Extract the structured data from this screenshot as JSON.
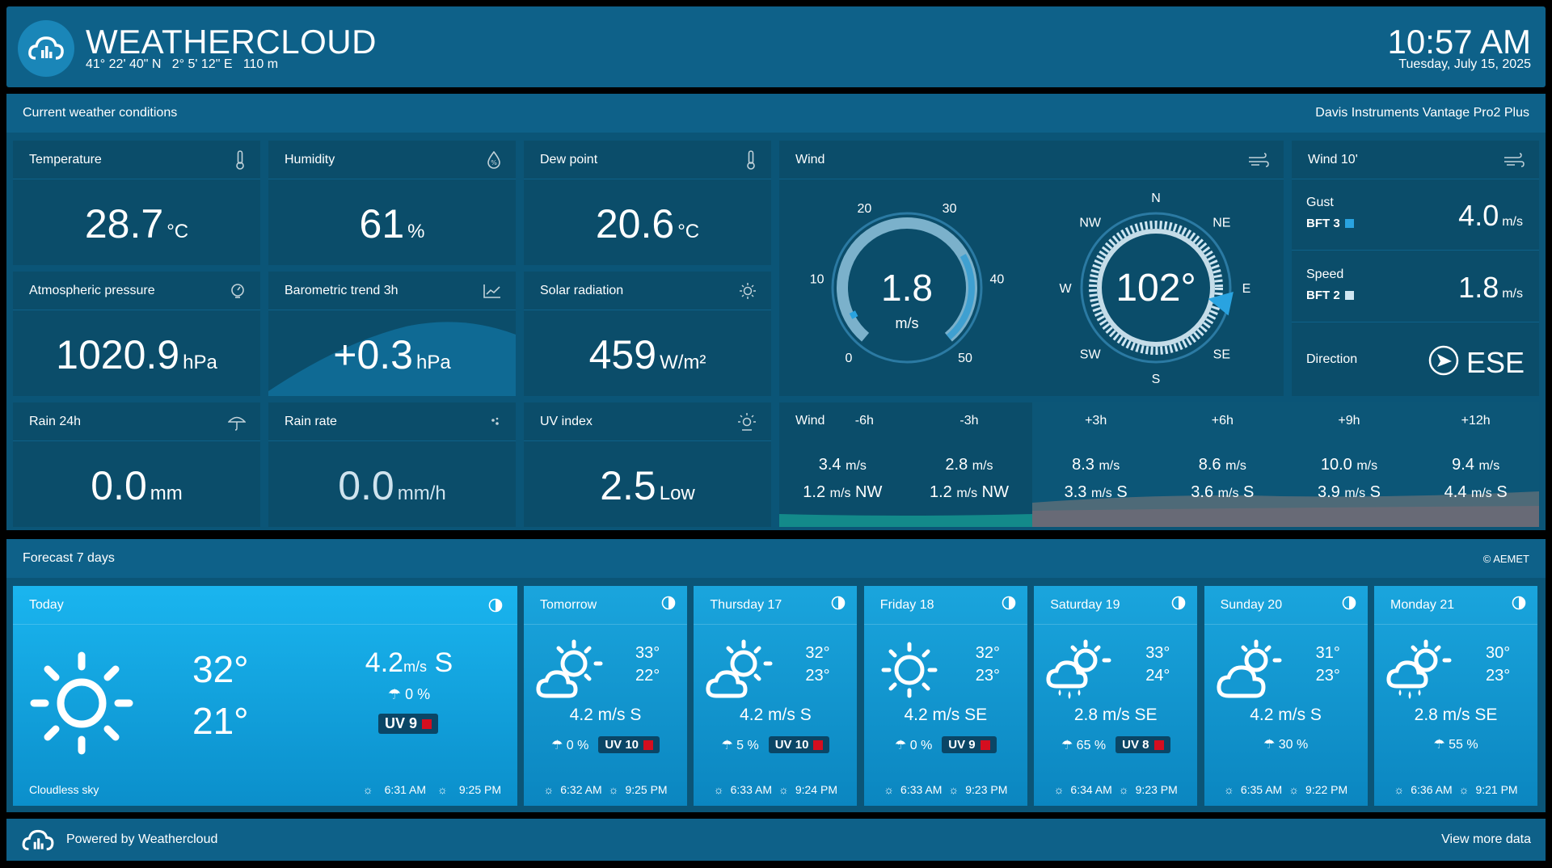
{
  "header": {
    "brand": "WEATHERCLOUD",
    "coords": "41° 22' 40\" N   2° 5' 12\" E   110 m",
    "time": "10:57 AM",
    "date": "Tuesday, July 15, 2025"
  },
  "current": {
    "title": "Current weather conditions",
    "station": "Davis Instruments Vantage Pro2 Plus",
    "temperature": {
      "label": "Temperature",
      "value": "28.7",
      "unit": "°C"
    },
    "humidity": {
      "label": "Humidity",
      "value": "61",
      "unit": "%"
    },
    "dewpoint": {
      "label": "Dew point",
      "value": "20.6",
      "unit": "°C"
    },
    "pressure": {
      "label": "Atmospheric pressure",
      "value": "1020.9",
      "unit": "hPa"
    },
    "baro_trend": {
      "label": "Barometric trend 3h",
      "value": "+0.3",
      "unit": "hPa"
    },
    "solar": {
      "label": "Solar radiation",
      "value": "459",
      "unit": "W/m²"
    },
    "rain24": {
      "label": "Rain 24h",
      "value": "0.0",
      "unit": "mm"
    },
    "rainrate": {
      "label": "Rain rate",
      "value": "0.0",
      "unit": "mm/h"
    },
    "uv": {
      "label": "UV index",
      "value": "2.5",
      "unit": "Low"
    }
  },
  "wind": {
    "label": "Wind",
    "speed": "1.8",
    "speed_unit": "m/s",
    "speed_fraction": 0.036,
    "gauge_ticks": [
      "0",
      "10",
      "20",
      "30",
      "40",
      "50"
    ],
    "direction_deg": "102°",
    "direction_value": 102,
    "compass": [
      "N",
      "NE",
      "E",
      "SE",
      "S",
      "SW",
      "W",
      "NW"
    ]
  },
  "wind10": {
    "label": "Wind 10'",
    "gust_label": "Gust",
    "gust_bft": "BFT 3",
    "gust_value": "4.0",
    "speed_label": "Speed",
    "speed_bft": "BFT 2",
    "speed_value": "1.8",
    "unit": "m/s",
    "direction_label": "Direction",
    "direction_value": "ESE"
  },
  "wind_forecast": {
    "label": "Wind",
    "columns": [
      {
        "time": "-6h",
        "speed": "3.4",
        "gust": "1.2",
        "dir": "NW"
      },
      {
        "time": "-3h",
        "speed": "2.8",
        "gust": "1.2",
        "dir": "NW"
      },
      {
        "time": "+3h",
        "speed": "8.3",
        "gust": "3.3",
        "dir": "S"
      },
      {
        "time": "+6h",
        "speed": "8.6",
        "gust": "3.6",
        "dir": "S"
      },
      {
        "time": "+9h",
        "speed": "10.0",
        "gust": "3.9",
        "dir": "S"
      },
      {
        "time": "+12h",
        "speed": "9.4",
        "gust": "4.4",
        "dir": "S"
      }
    ],
    "unit": "m/s"
  },
  "forecast": {
    "title": "Forecast 7 days",
    "source": "© AEMET",
    "today": {
      "label": "Today",
      "max": "32°",
      "min": "21°",
      "wind": "4.2",
      "wind_unit": "m/s",
      "wind_dir": "S",
      "rain": "0 %",
      "uv": "UV 9",
      "desc": "Cloudless sky",
      "sunrise": "6:31 AM",
      "sunset": "9:25 PM"
    },
    "days": [
      {
        "label": "Tomorrow",
        "max": "33°",
        "min": "22°",
        "wind": "4.2 m/s S",
        "rain": "0 %",
        "uv": "UV 10",
        "sunrise": "6:32 AM",
        "sunset": "9:25 PM",
        "icon": "partly-sunny-icon"
      },
      {
        "label": "Thursday 17",
        "max": "32°",
        "min": "23°",
        "wind": "4.2 m/s S",
        "rain": "5 %",
        "uv": "UV 10",
        "sunrise": "6:33 AM",
        "sunset": "9:24 PM",
        "icon": "partly-sunny-icon"
      },
      {
        "label": "Friday 18",
        "max": "32°",
        "min": "23°",
        "wind": "4.2 m/s SE",
        "rain": "0 %",
        "uv": "UV 9",
        "sunrise": "6:33 AM",
        "sunset": "9:23 PM",
        "icon": "sun-icon"
      },
      {
        "label": "Saturday 19",
        "max": "33°",
        "min": "24°",
        "wind": "2.8 m/s SE",
        "rain": "65 %",
        "uv": "UV 8",
        "sunrise": "6:34 AM",
        "sunset": "9:23 PM",
        "icon": "rain-sun-icon"
      },
      {
        "label": "Sunday 20",
        "max": "31°",
        "min": "23°",
        "wind": "4.2 m/s S",
        "rain": "30 %",
        "uv": "",
        "sunrise": "6:35 AM",
        "sunset": "9:22 PM",
        "icon": "cloud-sun-icon"
      },
      {
        "label": "Monday 21",
        "max": "30°",
        "min": "23°",
        "wind": "2.8 m/s SE",
        "rain": "55 %",
        "uv": "",
        "sunrise": "6:36 AM",
        "sunset": "9:21 PM",
        "icon": "rain-sun-icon"
      }
    ]
  },
  "footer": {
    "powered": "Powered by Weathercloud",
    "more": "View more data"
  }
}
